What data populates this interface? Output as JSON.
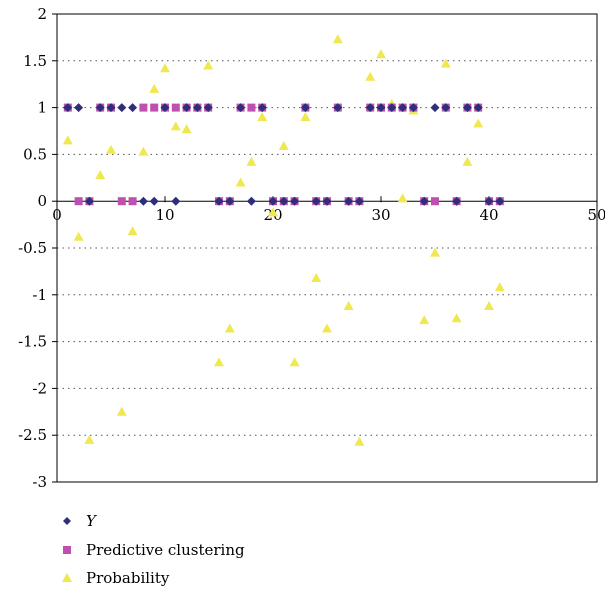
{
  "chart_data": {
    "type": "scatter",
    "title": "",
    "xlabel": "",
    "ylabel": "",
    "xlim": [
      0,
      50
    ],
    "ylim": [
      -3,
      2
    ],
    "x_ticks": [
      0,
      10,
      20,
      30,
      40,
      50
    ],
    "y_ticks": [
      2,
      1.5,
      1,
      0.5,
      0,
      -0.5,
      -1,
      -1.5,
      -2,
      -2.5,
      -3
    ],
    "x_tick_labels": [
      "0",
      "10",
      "20",
      "30",
      "40",
      "50"
    ],
    "y_tick_labels": [
      "2",
      "1.5",
      "1",
      "0.5",
      "0",
      "-0.5",
      "-1",
      "-1.5",
      "-2",
      "-2.5",
      "-3"
    ],
    "grid": "horizontal dotted",
    "legend_position": "bottom-left",
    "series": [
      {
        "name": "Y",
        "marker": "diamond",
        "color": "#2E2E7A",
        "x": [
          1,
          2,
          3,
          4,
          5,
          6,
          7,
          8,
          9,
          10,
          11,
          12,
          13,
          14,
          15,
          16,
          17,
          18,
          19,
          20,
          21,
          22,
          23,
          24,
          25,
          26,
          27,
          28,
          29,
          30,
          31,
          32,
          33,
          34,
          35,
          36,
          37,
          38,
          39,
          40,
          41
        ],
        "y": [
          1,
          1,
          0,
          1,
          1,
          1,
          1,
          0,
          0,
          1,
          0,
          1,
          1,
          1,
          0,
          0,
          1,
          0,
          1,
          0,
          0,
          0,
          1,
          0,
          0,
          1,
          0,
          0,
          1,
          1,
          1,
          1,
          1,
          0,
          1,
          1,
          0,
          1,
          1,
          0,
          0
        ]
      },
      {
        "name": "Predictive clustering",
        "marker": "square",
        "color": "#C050B0",
        "x": [
          1,
          2,
          3,
          4,
          5,
          6,
          7,
          8,
          9,
          10,
          11,
          12,
          13,
          14,
          15,
          16,
          17,
          18,
          19,
          20,
          21,
          22,
          23,
          24,
          25,
          26,
          27,
          28,
          29,
          30,
          31,
          32,
          33,
          34,
          35,
          36,
          37,
          38,
          39,
          40,
          41
        ],
        "y": [
          1,
          0,
          0,
          1,
          1,
          0,
          0,
          1,
          1,
          1,
          1,
          1,
          1,
          1,
          0,
          0,
          1,
          1,
          1,
          0,
          0,
          0,
          1,
          0,
          0,
          1,
          0,
          0,
          1,
          1,
          1,
          1,
          1,
          0,
          0,
          1,
          0,
          1,
          1,
          0,
          0
        ]
      },
      {
        "name": "Probability",
        "marker": "triangle",
        "color": "#F0E850",
        "x": [
          1,
          2,
          3,
          4,
          5,
          6,
          7,
          8,
          9,
          10,
          11,
          12,
          13,
          14,
          15,
          16,
          17,
          18,
          19,
          20,
          21,
          22,
          23,
          24,
          25,
          26,
          27,
          28,
          29,
          30,
          31,
          32,
          33,
          34,
          35,
          36,
          37,
          38,
          39,
          40,
          41
        ],
        "y": [
          0.65,
          -0.38,
          -2.55,
          0.28,
          0.55,
          -2.25,
          -0.32,
          0.53,
          1.2,
          1.42,
          0.8,
          0.77,
          1.0,
          1.45,
          -1.72,
          -1.36,
          0.2,
          0.42,
          0.9,
          -0.12,
          0.59,
          -1.72,
          0.9,
          -0.82,
          -1.36,
          1.73,
          -1.12,
          -2.57,
          1.33,
          1.57,
          1.04,
          0.03,
          0.97,
          -1.27,
          -0.55,
          1.47,
          -1.25,
          0.42,
          0.83,
          -1.12,
          -0.92
        ]
      }
    ]
  }
}
